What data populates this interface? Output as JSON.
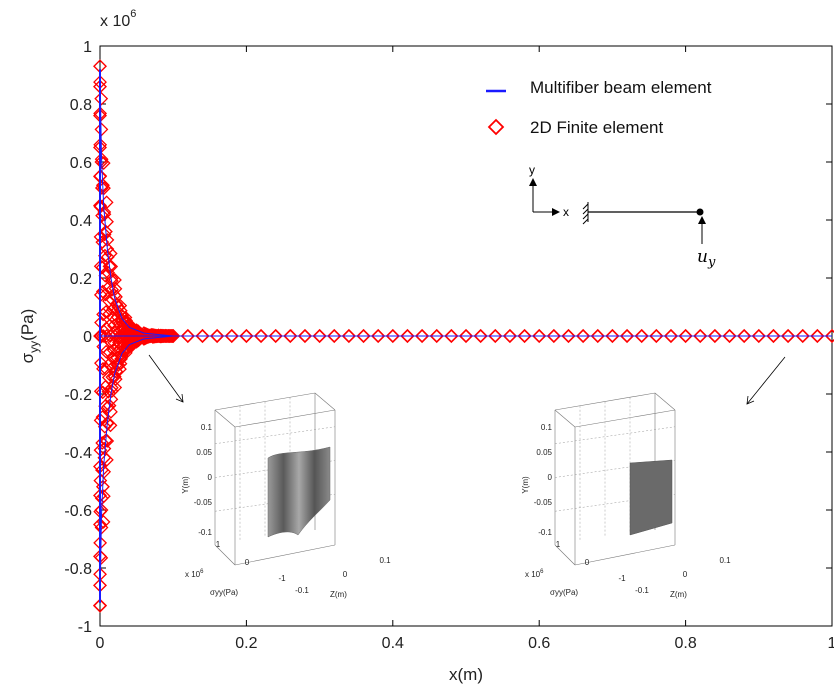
{
  "chart_data": {
    "type": "scatter",
    "title": "",
    "xlabel": "x(m)",
    "ylabel": "σyy(Pa)",
    "ylabel_main": "σ",
    "ylabel_sub": "yy",
    "ylabel_unit": "(Pa)",
    "y_multiplier_base": "x 10",
    "y_multiplier_exp": "6",
    "xlim": [
      0,
      1
    ],
    "ylim": [
      -1,
      1
    ],
    "y_scale_factor": 1000000,
    "x_ticks": [
      "0",
      "0.2",
      "0.4",
      "0.6",
      "0.8",
      "1"
    ],
    "y_ticks": [
      "-1",
      "-0.8",
      "-0.6",
      "-0.4",
      "-0.2",
      "0",
      "0.2",
      "0.4",
      "0.6",
      "0.8",
      "1"
    ],
    "grid": false,
    "legend_position": "top-right",
    "series": [
      {
        "name": "Multifiber beam element",
        "color": "#1a1aff",
        "marker": "line",
        "x": [
          0,
          0.002,
          0.005,
          0.01,
          0.015,
          0.02,
          0.03,
          0.04,
          0.06,
          0.1,
          0.2,
          0.4,
          0.6,
          0.8,
          1.0
        ],
        "y_upper": [
          0.92,
          0.62,
          0.45,
          0.3,
          0.2,
          0.13,
          0.06,
          0.03,
          0.01,
          0.0,
          0,
          0,
          0,
          0,
          0
        ],
        "y_lower": [
          -0.92,
          -0.62,
          -0.45,
          -0.3,
          -0.2,
          -0.13,
          -0.06,
          -0.03,
          -0.01,
          0.0,
          0,
          0,
          0,
          0,
          0
        ]
      },
      {
        "name": "2D Finite element",
        "color": "#ff0000",
        "marker": "diamond",
        "x_near": [
          0,
          0,
          0,
          0,
          0,
          0,
          0,
          0,
          0,
          0,
          0,
          0,
          0.002,
          0.002,
          0.004,
          0.004,
          0.006,
          0.006,
          0.008,
          0.008,
          0.01,
          0.01,
          0.013,
          0.013,
          0.016,
          0.016,
          0.02,
          0.02,
          0.025,
          0.025,
          0.03,
          0.03,
          0.035,
          0.035,
          0.04,
          0.04,
          0.05,
          0.05,
          0.06,
          0.06,
          0.07,
          0.08,
          0.09,
          0.1
        ],
        "y_near": [
          0.93,
          -0.93,
          0.86,
          -0.86,
          0.76,
          -0.76,
          0.65,
          -0.65,
          0.55,
          -0.55,
          0.45,
          -0.45,
          0.6,
          -0.6,
          0.52,
          -0.52,
          0.42,
          -0.42,
          0.36,
          -0.36,
          0.3,
          -0.3,
          0.24,
          -0.24,
          0.19,
          -0.19,
          0.14,
          -0.14,
          0.1,
          -0.1,
          0.07,
          -0.07,
          0.05,
          -0.05,
          0.035,
          -0.035,
          0.02,
          -0.02,
          0.01,
          -0.01,
          0.004,
          0.002,
          0.001,
          0.0
        ],
        "x_far_start": 0.1,
        "x_far_step": 0.02,
        "x_far_end": 1.0,
        "y_far": 0
      }
    ],
    "annotations": {
      "schematic": {
        "axis_y": "y",
        "axis_x": "x",
        "load": "u",
        "load_sub": "y"
      },
      "insets": [
        {
          "name": "inset-near-support",
          "y_ticks": [
            "0.1",
            "0.05",
            "0",
            "-0.05",
            "-0.1"
          ],
          "ylabel": "Y(m)",
          "x_ticks": [
            "1",
            "0",
            "-1"
          ],
          "x_multiplier": "x 10",
          "x_multiplier_exp": "6",
          "xlabel": "σyy(Pa)",
          "z_ticks": [
            "-0.1",
            "0",
            "0.1"
          ],
          "zlabel": "Z(m)",
          "surface": "wavy"
        },
        {
          "name": "inset-far-field",
          "y_ticks": [
            "0.1",
            "0.05",
            "0",
            "-0.05",
            "-0.1"
          ],
          "ylabel": "Y(m)",
          "x_ticks": [
            "1",
            "0",
            "-1"
          ],
          "x_multiplier": "x 10",
          "x_multiplier_exp": "6",
          "xlabel": "σyy(Pa)",
          "z_ticks": [
            "-0.1",
            "0",
            "0.1"
          ],
          "zlabel": "Z(m)",
          "surface": "flat"
        }
      ]
    }
  }
}
